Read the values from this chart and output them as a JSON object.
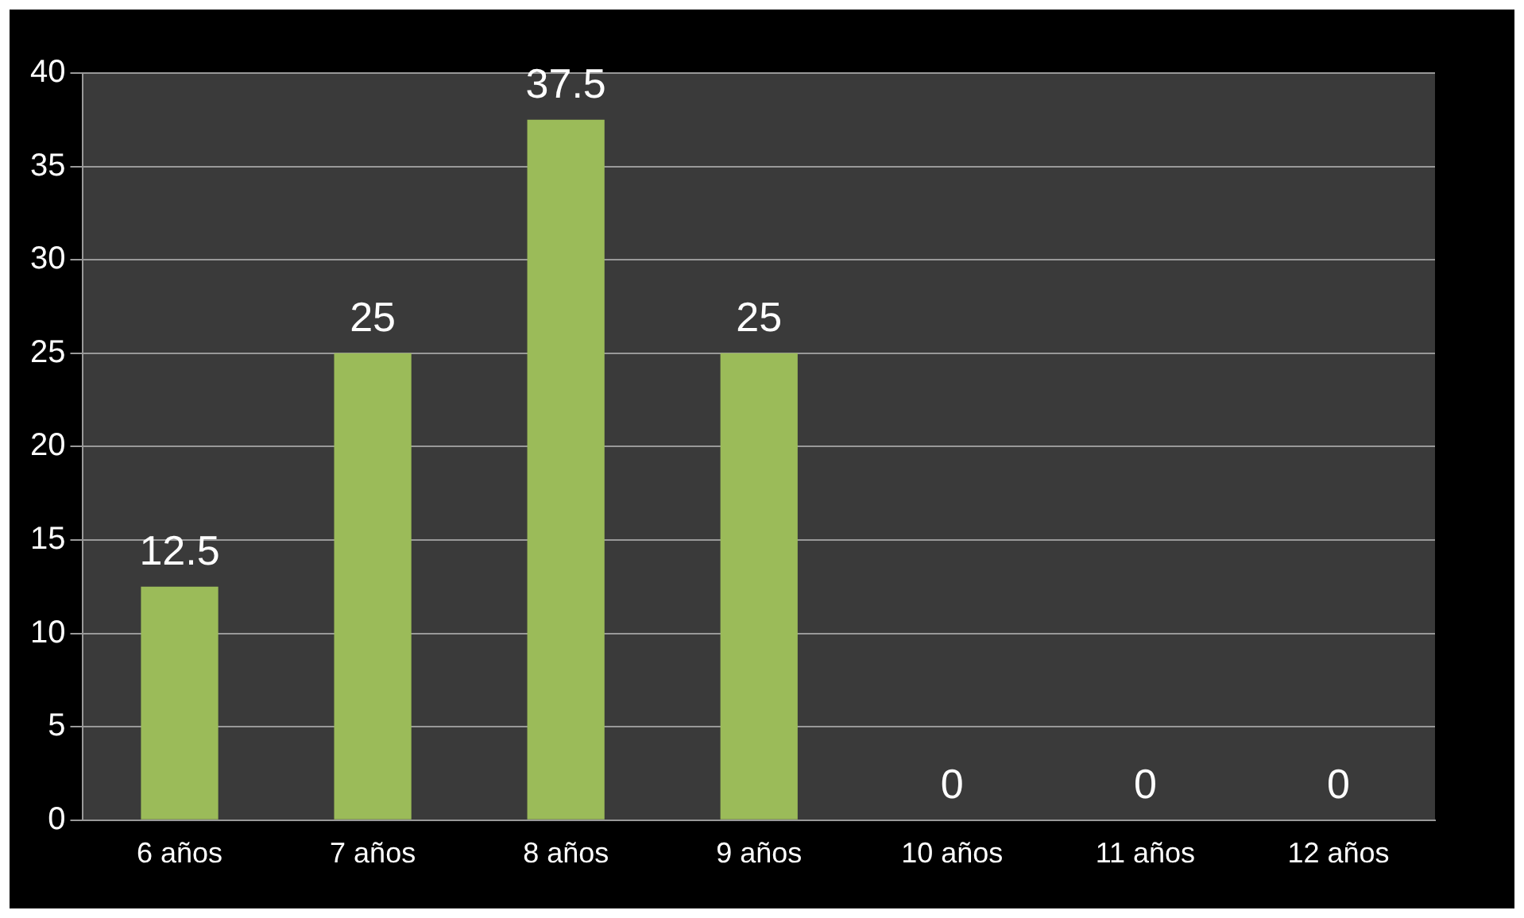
{
  "chart_data": {
    "type": "bar",
    "categories": [
      "6 años",
      "7 años",
      "8 años",
      "9 años",
      "10 años",
      "11 años",
      "12 años"
    ],
    "values": [
      12.5,
      25,
      37.5,
      25,
      0,
      0,
      0
    ],
    "color": "#9bbb59",
    "ylim": [
      0,
      40
    ],
    "yticks": [
      0,
      5,
      10,
      15,
      20,
      25,
      30,
      35,
      40
    ],
    "grid": "y",
    "data_labels": true
  }
}
